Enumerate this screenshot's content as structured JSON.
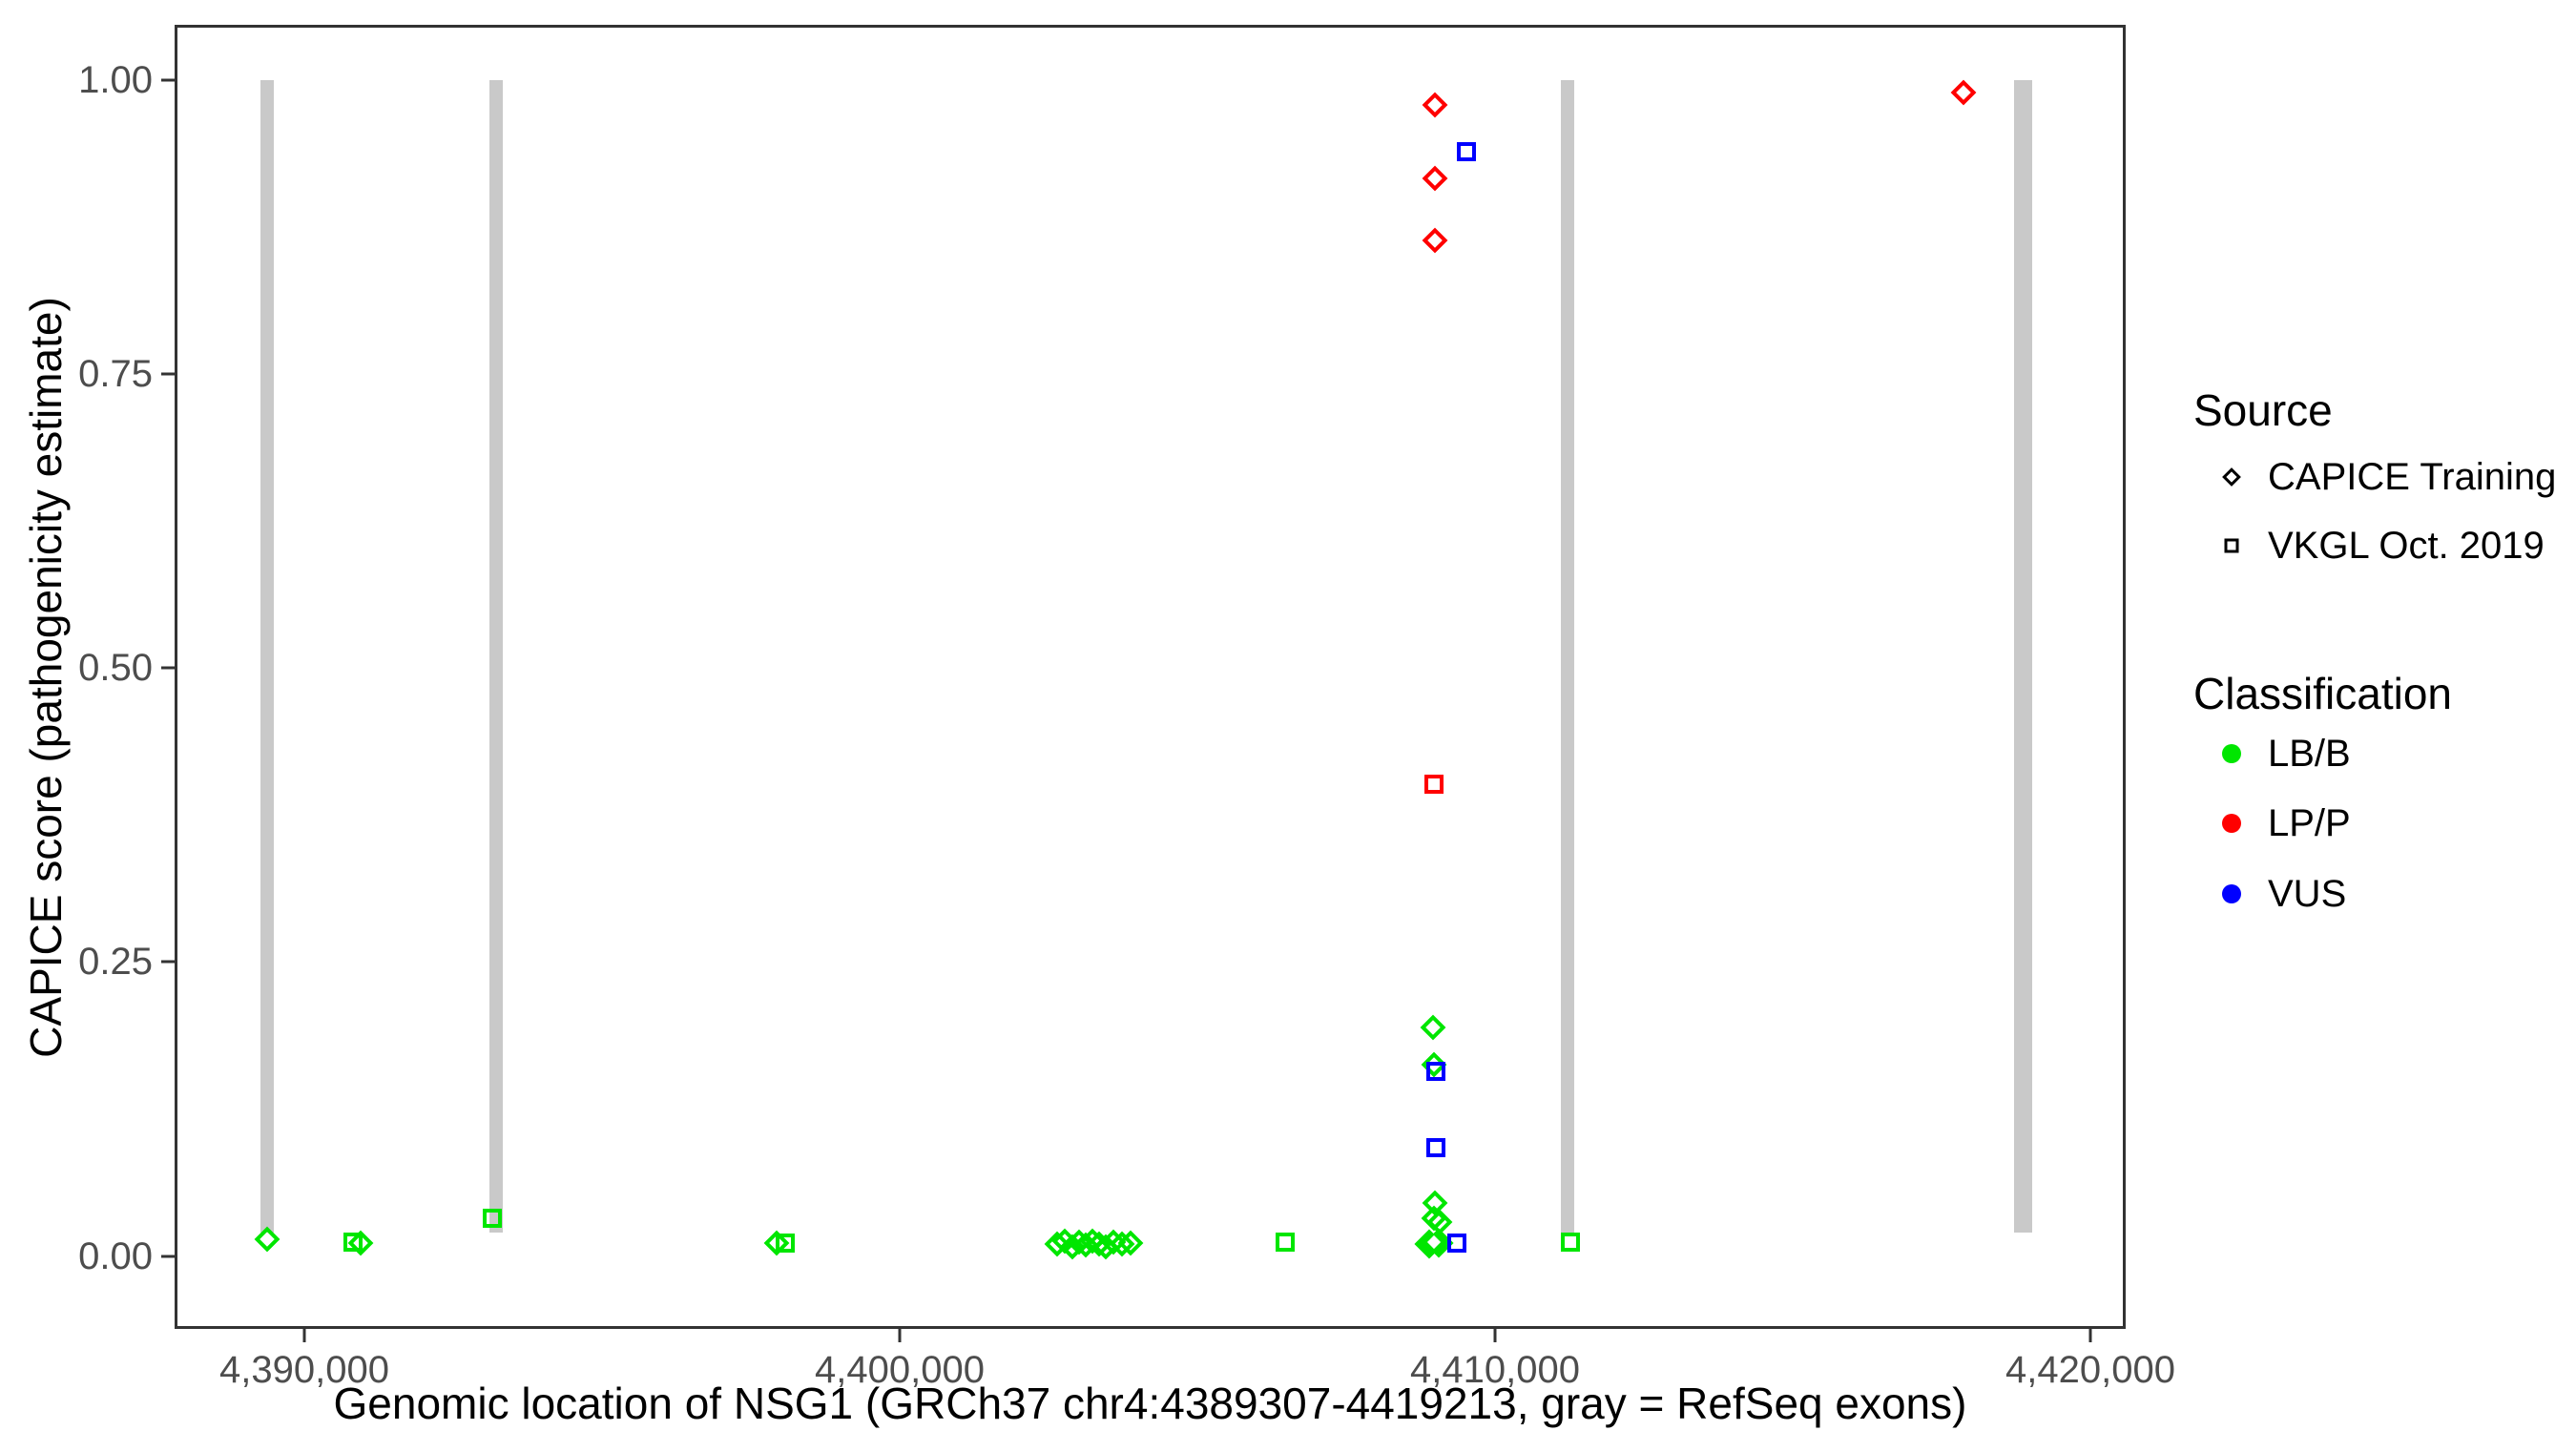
{
  "chart_data": {
    "type": "scatter",
    "title": "",
    "xlabel": "Genomic location of NSG1 (GRCh37 chr4:4389307-4419213, gray = RefSeq exons)",
    "ylabel": "CAPICE score (pathogenicity estimate)",
    "xlim": [
      4387821,
      4420593
    ],
    "ylim": [
      -0.062,
      1.047
    ],
    "grid": "off",
    "x_ticks": [
      {
        "value": 4390000,
        "label": "4,390,000"
      },
      {
        "value": 4400000,
        "label": "4,400,000"
      },
      {
        "value": 4410000,
        "label": "4,410,000"
      },
      {
        "value": 4420000,
        "label": "4,420,000"
      }
    ],
    "y_ticks": [
      {
        "value": 0.0,
        "label": "0.00"
      },
      {
        "value": 0.25,
        "label": "0.25"
      },
      {
        "value": 0.5,
        "label": "0.50"
      },
      {
        "value": 0.75,
        "label": "0.75"
      },
      {
        "value": 1.0,
        "label": "1.00"
      }
    ],
    "exon_color": "#c9c9c9",
    "exons": [
      {
        "xmin": 4389263,
        "xmax": 4389487,
        "ymin": 0.02,
        "ymax": 1.0
      },
      {
        "xmin": 4393109,
        "xmax": 4393333,
        "ymin": 0.02,
        "ymax": 1.0
      },
      {
        "xmin": 4411106,
        "xmax": 4411330,
        "ymin": 0.02,
        "ymax": 1.0
      },
      {
        "xmin": 4418718,
        "xmax": 4419022,
        "ymin": 0.02,
        "ymax": 1.0
      }
    ],
    "class_colors": {
      "LB/B": "#00e600",
      "LP/P": "#ff0000",
      "VUS": "#0000ff"
    },
    "points": [
      {
        "x": 4389375,
        "y": 0.014,
        "source": "CAPICE Training",
        "classification": "LB/B"
      },
      {
        "x": 4390817,
        "y": 0.012,
        "source": "VKGL Oct. 2019",
        "classification": "LB/B"
      },
      {
        "x": 4390946,
        "y": 0.011,
        "source": "CAPICE Training",
        "classification": "LB/B"
      },
      {
        "x": 4393157,
        "y": 0.032,
        "source": "VKGL Oct. 2019",
        "classification": "LB/B"
      },
      {
        "x": 4397933,
        "y": 0.011,
        "source": "CAPICE Training",
        "classification": "LB/B"
      },
      {
        "x": 4398077,
        "y": 0.011,
        "source": "VKGL Oct. 2019",
        "classification": "LB/B"
      },
      {
        "x": 4402644,
        "y": 0.01,
        "source": "CAPICE Training",
        "classification": "LB/B"
      },
      {
        "x": 4402772,
        "y": 0.013,
        "source": "CAPICE Training",
        "classification": "LB/B"
      },
      {
        "x": 4402901,
        "y": 0.008,
        "source": "CAPICE Training",
        "classification": "LB/B"
      },
      {
        "x": 4403013,
        "y": 0.012,
        "source": "CAPICE Training",
        "classification": "LB/B"
      },
      {
        "x": 4403125,
        "y": 0.009,
        "source": "CAPICE Training",
        "classification": "LB/B"
      },
      {
        "x": 4403237,
        "y": 0.013,
        "source": "CAPICE Training",
        "classification": "LB/B"
      },
      {
        "x": 4403349,
        "y": 0.01,
        "source": "CAPICE Training",
        "classification": "LB/B"
      },
      {
        "x": 4403462,
        "y": 0.008,
        "source": "CAPICE Training",
        "classification": "LB/B"
      },
      {
        "x": 4403590,
        "y": 0.012,
        "source": "CAPICE Training",
        "classification": "LB/B"
      },
      {
        "x": 4403734,
        "y": 0.01,
        "source": "CAPICE Training",
        "classification": "LB/B"
      },
      {
        "x": 4403878,
        "y": 0.011,
        "source": "CAPICE Training",
        "classification": "LB/B"
      },
      {
        "x": 4406474,
        "y": 0.012,
        "source": "VKGL Oct. 2019",
        "classification": "LB/B"
      },
      {
        "x": 4408958,
        "y": 0.194,
        "source": "CAPICE Training",
        "classification": "LB/B"
      },
      {
        "x": 4408974,
        "y": 0.163,
        "source": "CAPICE Training",
        "classification": "LB/B"
      },
      {
        "x": 4408990,
        "y": 0.045,
        "source": "CAPICE Training",
        "classification": "LB/B"
      },
      {
        "x": 4408974,
        "y": 0.032,
        "source": "CAPICE Training",
        "classification": "LB/B"
      },
      {
        "x": 4409070,
        "y": 0.029,
        "source": "CAPICE Training",
        "classification": "LB/B"
      },
      {
        "x": 4408890,
        "y": 0.01,
        "source": "CAPICE Training",
        "classification": "LB/B",
        "fill": "filled"
      },
      {
        "x": 4409050,
        "y": 0.011,
        "source": "CAPICE Training",
        "classification": "LB/B",
        "fill": "filled"
      },
      {
        "x": 4408975,
        "y": 0.012,
        "source": "CAPICE Training",
        "classification": "LB/B",
        "fill": "filled-white"
      },
      {
        "x": 4411266,
        "y": 0.012,
        "source": "VKGL Oct. 2019",
        "classification": "LB/B"
      },
      {
        "x": 4409519,
        "y": 0.939,
        "source": "VKGL Oct. 2019",
        "classification": "VUS"
      },
      {
        "x": 4409006,
        "y": 0.157,
        "source": "VKGL Oct. 2019",
        "classification": "VUS"
      },
      {
        "x": 4409006,
        "y": 0.092,
        "source": "VKGL Oct. 2019",
        "classification": "VUS"
      },
      {
        "x": 4409359,
        "y": 0.011,
        "source": "VKGL Oct. 2019",
        "classification": "VUS"
      },
      {
        "x": 4408994,
        "y": 0.979,
        "source": "CAPICE Training",
        "classification": "LP/P"
      },
      {
        "x": 4408994,
        "y": 0.916,
        "source": "CAPICE Training",
        "classification": "LP/P"
      },
      {
        "x": 4408994,
        "y": 0.864,
        "source": "CAPICE Training",
        "classification": "LP/P"
      },
      {
        "x": 4408974,
        "y": 0.401,
        "source": "VKGL Oct. 2019",
        "classification": "LP/P"
      },
      {
        "x": 4417869,
        "y": 0.989,
        "source": "CAPICE Training",
        "classification": "LP/P"
      }
    ]
  },
  "legend": {
    "source": {
      "title": "Source",
      "items": [
        {
          "label": "CAPICE Training",
          "icon": "open-diamond"
        },
        {
          "label": "VKGL Oct. 2019",
          "icon": "open-square"
        }
      ]
    },
    "classification": {
      "title": "Classification",
      "items": [
        {
          "label": "LB/B",
          "color": "#00e600"
        },
        {
          "label": "LP/P",
          "color": "#ff0000"
        },
        {
          "label": "VUS",
          "color": "#0000ff"
        }
      ]
    }
  }
}
